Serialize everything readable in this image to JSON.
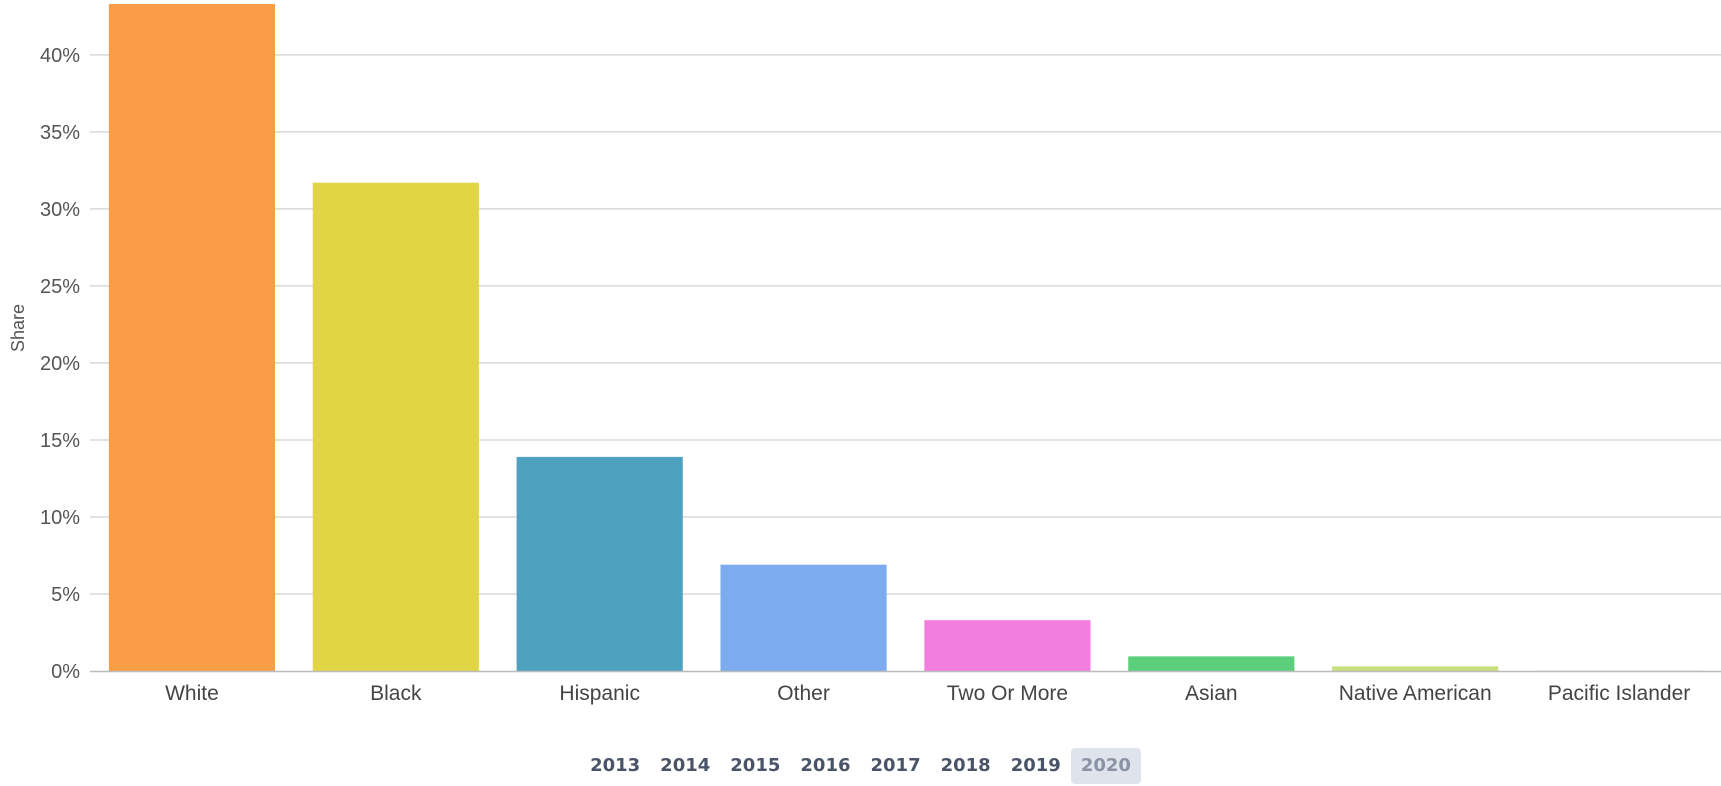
{
  "chart_data": {
    "type": "bar",
    "categories": [
      "White",
      "Black",
      "Hispanic",
      "Other",
      "Two Or More",
      "Asian",
      "Native American",
      "Pacific Islander"
    ],
    "values": [
      43.3,
      31.7,
      13.9,
      6.9,
      3.3,
      0.95,
      0.3,
      0.02
    ],
    "colors": [
      "#f99e47",
      "#e1d546",
      "#4ea2c0",
      "#7dabef",
      "#f27fe0",
      "#5ccf7c",
      "#c6df7c",
      "#b4b4b4"
    ],
    "title": "",
    "xlabel": "",
    "ylabel": "Share",
    "ylim": [
      0,
      43.3
    ],
    "yticks": [
      0,
      5,
      10,
      15,
      20,
      25,
      30,
      35,
      40
    ],
    "ytick_labels": [
      "0%",
      "5%",
      "10%",
      "15%",
      "20%",
      "25%",
      "30%",
      "35%",
      "40%"
    ],
    "grid": true
  },
  "years": {
    "items": [
      "2013",
      "2014",
      "2015",
      "2016",
      "2017",
      "2018",
      "2019",
      "2020"
    ],
    "selected": "2020"
  }
}
